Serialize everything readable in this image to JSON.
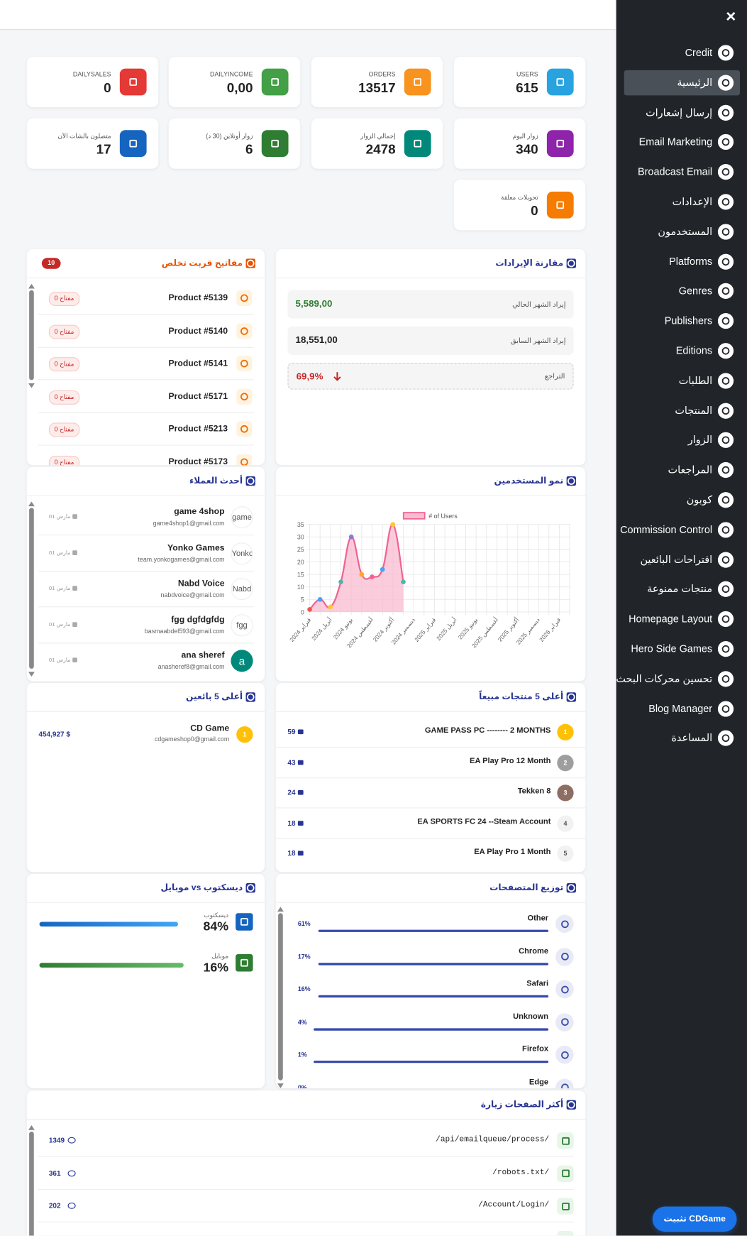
{
  "sidebar": {
    "close": "×",
    "items": [
      "Credit",
      "الرئيسية",
      "إرسال إشعارات",
      "Email Marketing",
      "Broadcast Email",
      "الإعدادات",
      "المستخدمون",
      "Platforms",
      "Genres",
      "Publishers",
      "Editions",
      "الطلبات",
      "المنتجات",
      "الزوار",
      "المراجعات",
      "كوبون",
      "Commission Control",
      "اقتراحات البائعين",
      "منتجات ممنوعة",
      "Homepage Layout",
      "Hero Side Games",
      "تحسين محركات البحث",
      "Blog Manager",
      "المساعدة"
    ],
    "active": 1
  },
  "install_button": "تثبيت CDGame",
  "stats": [
    {
      "label": "USERS",
      "value": 615,
      "color": "#29a3e0"
    },
    {
      "label": "ORDERS",
      "value": 13517,
      "color": "#f7931e"
    },
    {
      "label": "DAILYINCOME",
      "value": "0,00",
      "color": "#43a047"
    },
    {
      "label": "DAILYSALES",
      "value": 0,
      "color": "#e53935"
    },
    {
      "label": "زوار اليوم",
      "value": 340,
      "color": "#8e24aa"
    },
    {
      "label": "إجمالي الزوار",
      "value": 2478,
      "color": "#00897b"
    },
    {
      "label": "زوار أونلاين (30 د)",
      "value": 6,
      "color": "#2e7d32"
    },
    {
      "label": "متصلون بالشات الآن",
      "value": 17,
      "color": "#1565c0"
    },
    {
      "label": "تحويلات معلقة",
      "value": 0,
      "color": "#f57c00"
    }
  ],
  "low_keys": {
    "title": "مفاتيح قربت تخلص",
    "badge": 10,
    "items": [
      {
        "name": "Product #5139",
        "stock": "0 مفتاح"
      },
      {
        "name": "Product #5140",
        "stock": "0 مفتاح"
      },
      {
        "name": "Product #5141",
        "stock": "0 مفتاح"
      },
      {
        "name": "Product #5171",
        "stock": "0 مفتاح"
      },
      {
        "name": "Product #5213",
        "stock": "0 مفتاح"
      },
      {
        "name": "Product #5173",
        "stock": "0 مفتاح"
      }
    ]
  },
  "revenue": {
    "title": "مقارنة الإيرادات",
    "rows": [
      {
        "label": "إيراد الشهر الحالي",
        "value": "5,589,00"
      },
      {
        "label": "إيراد الشهر السابق",
        "value": "18,551,00"
      }
    ],
    "change": {
      "label": "التراجع",
      "value": "69,9%"
    }
  },
  "customers": {
    "title": "أحدث العملاء",
    "items": [
      {
        "avatar": "game",
        "name": "game 4shop",
        "email": "game4shop1@gmail.com",
        "date": "01 مارس"
      },
      {
        "avatar": "Yonko",
        "name": "Yonko Games",
        "email": "team.yonkogames@gmail.com",
        "date": "01 مارس"
      },
      {
        "avatar": "Nabd",
        "name": "Nabd Voice",
        "email": "nabdvoice@gmail.com",
        "date": "01 مارس"
      },
      {
        "avatar": "fgg",
        "name": "fgg dgfdgfdg",
        "email": "basmaabdel593@gmail.com",
        "date": "01 مارس"
      },
      {
        "avatar": "a",
        "name": "ana sheref",
        "email": "anasheref8@gmail.com",
        "date": "01 مارس"
      }
    ]
  },
  "chart_data": {
    "type": "line",
    "title": "نمو المستخدمين",
    "categories": [
      "فبراير 2024",
      null,
      "أبريل 2024",
      null,
      "يونيو 2024",
      null,
      "أغسطس 2024",
      null,
      "أكتوبر 2024",
      null,
      "ديسمبر 2024",
      null,
      "فبراير 2025",
      null,
      "أبريل 2025",
      null,
      "يونيو 2025",
      null,
      "أغسطس 2025",
      null,
      "أكتوبر 2025",
      null,
      "ديسمبر 2025",
      null,
      "فبراير 2026",
      null
    ],
    "series": [
      {
        "name": "# of Users",
        "color": "#f06292",
        "fill": "#f8bbd0",
        "values": [
          1,
          5,
          2,
          12,
          30,
          15,
          14,
          17,
          35,
          12,
          null,
          null,
          null,
          null,
          null,
          null,
          null,
          null,
          null,
          null,
          null,
          null,
          null,
          null,
          null,
          null
        ],
        "point_colors": [
          "#ef5350",
          "#42a5f5",
          "#ffca28",
          "#4db6ac",
          "#9575cd",
          "#ffa726",
          "#f06292",
          "#42a5f5",
          "#ffca28",
          "#4db6ac"
        ]
      }
    ],
    "ylim": [
      0,
      35
    ],
    "yticks": [
      0,
      5,
      10,
      15,
      20,
      25,
      30,
      35
    ],
    "grid": true
  },
  "top_sellers": {
    "title": "أعلى 5 بائعين",
    "items": [
      {
        "rank": 1,
        "name": "CD Game",
        "email": "cdgameshop0@gmail.com",
        "amount": "454,927 $"
      }
    ]
  },
  "top_products": {
    "title": "أعلى 5 منتجات مبيعاً",
    "items": [
      {
        "rank": 1,
        "name": "GAME PASS PC -------- 2 MONTHS",
        "sales": 59
      },
      {
        "rank": 2,
        "name": "EA Play Pro 12 Month",
        "sales": 43
      },
      {
        "rank": 3,
        "name": "Tekken 8",
        "sales": 24
      },
      {
        "rank": 4,
        "name": "EA SPORTS FC 24 --Steam Account",
        "sales": 18
      },
      {
        "rank": 5,
        "name": "EA Play Pro 1 Month",
        "sales": 18
      }
    ]
  },
  "devices": {
    "title": "موبايل vs ديسكتوب",
    "items": [
      {
        "label": "ديسكتوب",
        "value": "84%"
      },
      {
        "label": "موبايل",
        "value": "16%"
      }
    ]
  },
  "browsers": {
    "title": "توزيع المتصفحات",
    "items": [
      {
        "name": "Other",
        "value": "61%"
      },
      {
        "name": "Chrome",
        "value": "17%"
      },
      {
        "name": "Safari",
        "value": "16%"
      },
      {
        "name": "Unknown",
        "value": "4%"
      },
      {
        "name": "Firefox",
        "value": "1%"
      },
      {
        "name": "Edge",
        "value": "0%"
      }
    ]
  },
  "top_pages": {
    "title": "أكثر الصفحات زيارة",
    "items": [
      {
        "path": "/api/emailqueue/process/",
        "visits": 1349
      },
      {
        "path": "/robots.txt/",
        "visits": 361
      },
      {
        "path": "/Account/Login/",
        "visits": 202
      }
    ]
  }
}
